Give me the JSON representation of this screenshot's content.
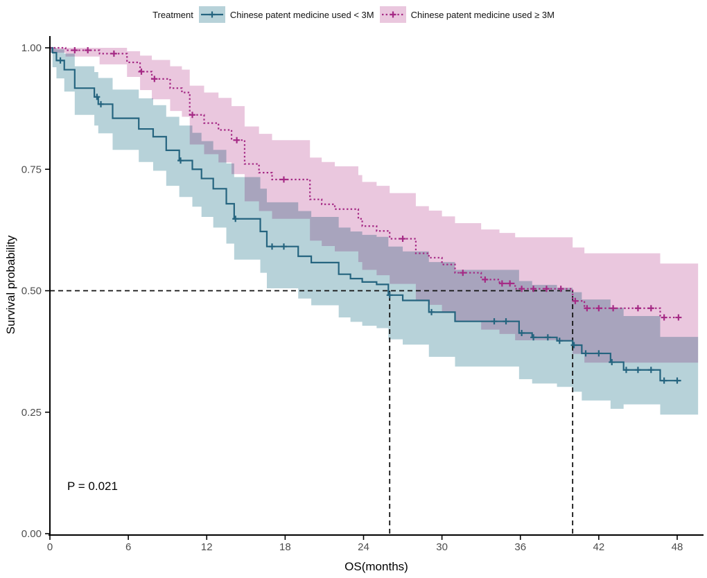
{
  "legend": {
    "title": "Treatment",
    "items": [
      {
        "label": "Chinese patent medicine used < 3M",
        "line_color": "#25647f",
        "band_color": "#b7d2d9",
        "line_style": "solid"
      },
      {
        "label": "Chinese patent medicine used ≥ 3M",
        "line_color": "#a52a85",
        "band_color": "#eac7de",
        "line_style": "dotted"
      }
    ]
  },
  "annotation": {
    "p_value": "P = 0.021"
  },
  "chart_data": {
    "type": "line",
    "subtype": "kaplan-meier-step-with-confidence-bands",
    "title": "",
    "xlabel": "OS(months)",
    "ylabel": "Survival probability",
    "xlim": [
      0,
      48
    ],
    "ylim": [
      0,
      1
    ],
    "xticks": [
      0,
      6,
      12,
      18,
      24,
      30,
      36,
      42,
      48
    ],
    "xtick_labels": [
      "0",
      "6",
      "12",
      "18",
      "24",
      "30",
      "36",
      "42",
      "48"
    ],
    "yticks": [
      0,
      0.25,
      0.5,
      0.75,
      1.0
    ],
    "ytick_labels": [
      "0.00",
      "0.25",
      "0.50",
      "0.75",
      "1.00"
    ],
    "grid": "off",
    "legend_position": "top",
    "p_value_text": "P = 0.021",
    "median_guides": {
      "survival_probability": 0.5,
      "median_months_lt3m": 26,
      "median_months_ge3m": 40,
      "dash_color": "#111111"
    },
    "curve_end_month": 48.3,
    "band_end_month": 49.6,
    "axis_color": "#000000",
    "tick_label_color": "#4d4d4d",
    "series": [
      {
        "name": "Chinese patent medicine used < 3M",
        "key": "lt3m",
        "color": "#25647f",
        "band_color": "#b7d2d9",
        "line_style": "solid",
        "steps": [
          [
            0,
            1.0
          ],
          [
            0.2,
            0.99
          ],
          [
            0.5,
            0.974
          ],
          [
            1.1,
            0.955
          ],
          [
            1.9,
            0.917
          ],
          [
            3.4,
            0.899
          ],
          [
            3.7,
            0.884
          ],
          [
            4.8,
            0.855
          ],
          [
            6.8,
            0.833
          ],
          [
            7.9,
            0.817
          ],
          [
            8.9,
            0.789
          ],
          [
            9.9,
            0.768
          ],
          [
            10.9,
            0.75
          ],
          [
            11.6,
            0.731
          ],
          [
            12.5,
            0.71
          ],
          [
            13.5,
            0.679
          ],
          [
            14.1,
            0.648
          ],
          [
            16.1,
            0.622
          ],
          [
            16.6,
            0.591
          ],
          [
            19.0,
            0.571
          ],
          [
            20.0,
            0.558
          ],
          [
            22.1,
            0.534
          ],
          [
            23.0,
            0.525
          ],
          [
            23.9,
            0.518
          ],
          [
            25.0,
            0.513
          ],
          [
            25.9,
            0.491
          ],
          [
            27.0,
            0.48
          ],
          [
            29.0,
            0.456
          ],
          [
            31.0,
            0.437
          ],
          [
            35.9,
            0.413
          ],
          [
            36.9,
            0.404
          ],
          [
            38.8,
            0.397
          ],
          [
            40.0,
            0.388
          ],
          [
            40.7,
            0.371
          ],
          [
            42.9,
            0.353
          ],
          [
            43.9,
            0.337
          ],
          [
            46.7,
            0.315
          ]
        ],
        "censor_months": [
          0.8,
          3.6,
          3.9,
          10.0,
          14.2,
          17.0,
          17.9,
          26.0,
          29.2,
          34.0,
          34.9,
          36.1,
          37.0,
          38.1,
          39.0,
          40.1,
          41.0,
          42.0,
          43.0,
          44.1,
          45.0,
          46.0,
          47.0,
          48.0
        ],
        "ci": [
          [
            0,
            0.99,
            1.0
          ],
          [
            0.2,
            0.96,
            1.0
          ],
          [
            0.5,
            0.937,
            0.997
          ],
          [
            1.1,
            0.91,
            0.988
          ],
          [
            1.9,
            0.862,
            0.962
          ],
          [
            3.4,
            0.84,
            0.95
          ],
          [
            3.7,
            0.824,
            0.938
          ],
          [
            4.8,
            0.79,
            0.914
          ],
          [
            6.8,
            0.765,
            0.896
          ],
          [
            7.9,
            0.747,
            0.882
          ],
          [
            8.9,
            0.716,
            0.858
          ],
          [
            9.9,
            0.693,
            0.84
          ],
          [
            10.9,
            0.673,
            0.825
          ],
          [
            11.6,
            0.652,
            0.808
          ],
          [
            12.5,
            0.63,
            0.79
          ],
          [
            13.5,
            0.597,
            0.762
          ],
          [
            14.1,
            0.564,
            0.734
          ],
          [
            16.1,
            0.537,
            0.71
          ],
          [
            16.6,
            0.505,
            0.682
          ],
          [
            19.0,
            0.484,
            0.664
          ],
          [
            20.0,
            0.47,
            0.652
          ],
          [
            22.1,
            0.445,
            0.63
          ],
          [
            23.0,
            0.436,
            0.622
          ],
          [
            23.9,
            0.428,
            0.615
          ],
          [
            25.0,
            0.423,
            0.611
          ],
          [
            25.9,
            0.4,
            0.591
          ],
          [
            27.0,
            0.389,
            0.581
          ],
          [
            29.0,
            0.364,
            0.559
          ],
          [
            31.0,
            0.344,
            0.543
          ],
          [
            35.9,
            0.318,
            0.52
          ],
          [
            36.9,
            0.309,
            0.512
          ],
          [
            38.8,
            0.302,
            0.506
          ],
          [
            40.0,
            0.292,
            0.497
          ],
          [
            40.7,
            0.274,
            0.482
          ],
          [
            42.9,
            0.257,
            0.465
          ],
          [
            43.9,
            0.266,
            0.448
          ],
          [
            46.7,
            0.245,
            0.405
          ]
        ]
      },
      {
        "name": "Chinese patent medicine used ≥ 3M",
        "key": "ge3m",
        "color": "#a52a85",
        "band_color": "#eac7de",
        "line_style": "dotted",
        "steps": [
          [
            0,
            1.0
          ],
          [
            1.2,
            0.995
          ],
          [
            3.8,
            0.988
          ],
          [
            5.9,
            0.97
          ],
          [
            6.9,
            0.951
          ],
          [
            7.8,
            0.936
          ],
          [
            9.2,
            0.917
          ],
          [
            10.1,
            0.908
          ],
          [
            10.7,
            0.862
          ],
          [
            11.8,
            0.845
          ],
          [
            12.9,
            0.831
          ],
          [
            13.9,
            0.81
          ],
          [
            14.9,
            0.761
          ],
          [
            16.0,
            0.743
          ],
          [
            17.0,
            0.729
          ],
          [
            19.9,
            0.688
          ],
          [
            20.8,
            0.678
          ],
          [
            21.8,
            0.668
          ],
          [
            23.6,
            0.648
          ],
          [
            23.9,
            0.633
          ],
          [
            25.0,
            0.623
          ],
          [
            26.0,
            0.607
          ],
          [
            28.0,
            0.577
          ],
          [
            29.0,
            0.568
          ],
          [
            30.0,
            0.554
          ],
          [
            31.0,
            0.537
          ],
          [
            33.0,
            0.523
          ],
          [
            34.4,
            0.515
          ],
          [
            35.6,
            0.504
          ],
          [
            40.0,
            0.479
          ],
          [
            40.9,
            0.464
          ],
          [
            46.7,
            0.445
          ]
        ],
        "censor_months": [
          1.9,
          2.9,
          4.9,
          7.0,
          8.0,
          10.9,
          14.3,
          17.9,
          27.0,
          31.6,
          33.3,
          34.6,
          35.2,
          36.1,
          37.0,
          38.0,
          39.1,
          40.2,
          41.1,
          42.0,
          43.1,
          45.0,
          46.0,
          47.0,
          48.1
        ],
        "ci": [
          [
            0,
            0.99,
            1.0
          ],
          [
            1.2,
            0.982,
            1.0
          ],
          [
            3.8,
            0.966,
            1.0
          ],
          [
            5.9,
            0.94,
            0.993
          ],
          [
            6.9,
            0.913,
            0.984
          ],
          [
            7.8,
            0.894,
            0.975
          ],
          [
            9.2,
            0.87,
            0.962
          ],
          [
            10.1,
            0.858,
            0.955
          ],
          [
            10.7,
            0.801,
            0.922
          ],
          [
            11.8,
            0.781,
            0.908
          ],
          [
            12.9,
            0.764,
            0.897
          ],
          [
            13.9,
            0.74,
            0.88
          ],
          [
            14.9,
            0.684,
            0.838
          ],
          [
            16.0,
            0.664,
            0.823
          ],
          [
            17.0,
            0.648,
            0.81
          ],
          [
            19.9,
            0.603,
            0.774
          ],
          [
            20.8,
            0.592,
            0.765
          ],
          [
            21.8,
            0.581,
            0.756
          ],
          [
            23.6,
            0.559,
            0.738
          ],
          [
            23.9,
            0.543,
            0.724
          ],
          [
            25.0,
            0.532,
            0.716
          ],
          [
            26.0,
            0.514,
            0.701
          ],
          [
            28.0,
            0.481,
            0.674
          ],
          [
            29.0,
            0.471,
            0.665
          ],
          [
            30.0,
            0.455,
            0.653
          ],
          [
            31.0,
            0.436,
            0.639
          ],
          [
            33.0,
            0.42,
            0.626
          ],
          [
            34.4,
            0.411,
            0.619
          ],
          [
            35.6,
            0.398,
            0.61
          ],
          [
            40.0,
            0.37,
            0.589
          ],
          [
            40.9,
            0.352,
            0.577
          ],
          [
            46.7,
            0.352,
            0.556
          ]
        ]
      }
    ]
  }
}
